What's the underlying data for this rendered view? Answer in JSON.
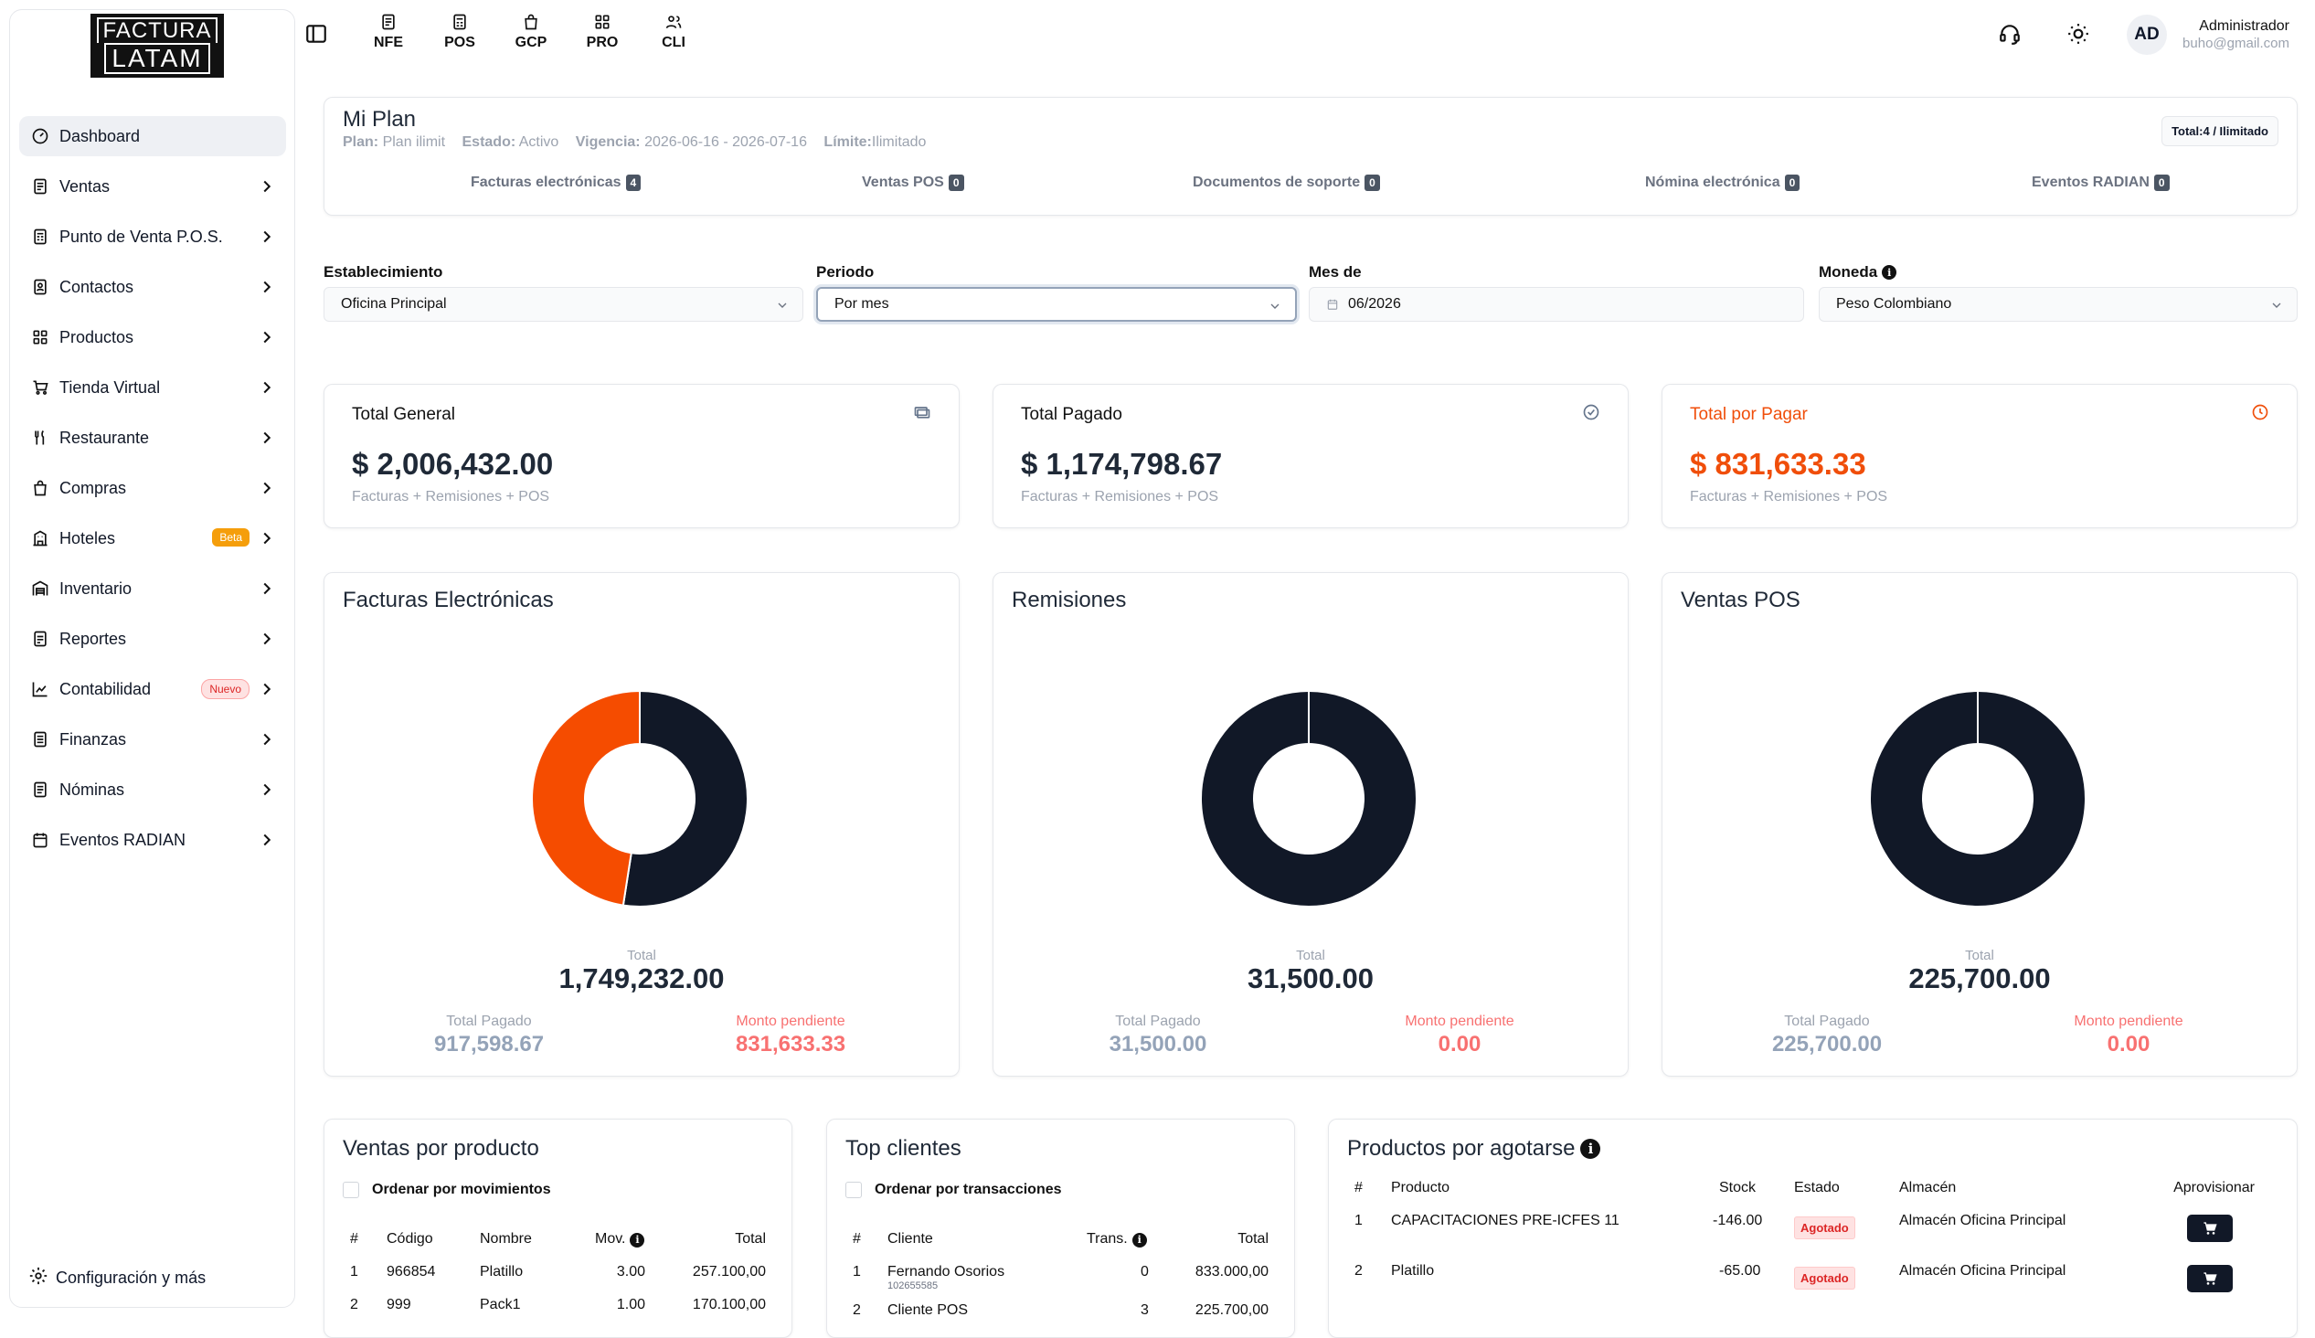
{
  "logo": {
    "line1": "FACTURA",
    "line2": "LATAM"
  },
  "sidebar": {
    "items": [
      {
        "label": "Dashboard",
        "icon": "dashboard-icon"
      },
      {
        "label": "Ventas",
        "icon": "document-icon"
      },
      {
        "label": "Punto de Venta P.O.S.",
        "icon": "pos-icon"
      },
      {
        "label": "Contactos",
        "icon": "contacts-icon"
      },
      {
        "label": "Productos",
        "icon": "grid-icon"
      },
      {
        "label": "Tienda Virtual",
        "icon": "cart-icon"
      },
      {
        "label": "Restaurante",
        "icon": "utensils-icon"
      },
      {
        "label": "Compras",
        "icon": "shopping-bag-icon"
      },
      {
        "label": "Hoteles",
        "icon": "hotel-icon",
        "badge": "Beta"
      },
      {
        "label": "Inventario",
        "icon": "warehouse-icon"
      },
      {
        "label": "Reportes",
        "icon": "report-icon"
      },
      {
        "label": "Contabilidad",
        "icon": "chart-icon",
        "badge": "Nuevo"
      },
      {
        "label": "Finanzas",
        "icon": "finance-icon"
      },
      {
        "label": "Nóminas",
        "icon": "payroll-icon"
      },
      {
        "label": "Eventos RADIAN",
        "icon": "calendar-icon"
      }
    ],
    "footer": "Configuración y más"
  },
  "topnav": [
    {
      "label": "NFE"
    },
    {
      "label": "POS"
    },
    {
      "label": "GCP"
    },
    {
      "label": "PRO"
    },
    {
      "label": "CLI"
    }
  ],
  "user": {
    "initials": "AD",
    "name": "Administrador",
    "email": "buho@gmail.com"
  },
  "plan": {
    "title": "Mi Plan",
    "plan_label": "Plan:",
    "plan_value": "Plan ilimit",
    "estado_label": "Estado:",
    "estado_value": "Activo",
    "vigencia_label": "Vigencia:",
    "vigencia_value": "2026-06-16 - 2026-07-16",
    "limite_label": "Límite:",
    "limite_value": "Ilimitado",
    "total_badge": "Total:4 / Ilimitado",
    "counters": [
      {
        "label": "Facturas electrónicas",
        "value": "4"
      },
      {
        "label": "Ventas POS",
        "value": "0"
      },
      {
        "label": "Documentos de soporte",
        "value": "0"
      },
      {
        "label": "Nómina electrónica",
        "value": "0"
      },
      {
        "label": "Eventos RADIAN",
        "value": "0"
      }
    ]
  },
  "filters": {
    "establecimiento": {
      "label": "Establecimiento",
      "value": "Oficina Principal"
    },
    "periodo": {
      "label": "Periodo",
      "value": "Por mes"
    },
    "mes": {
      "label": "Mes de",
      "value": "06/2026"
    },
    "moneda": {
      "label": "Moneda",
      "value": "Peso Colombiano"
    }
  },
  "summary": [
    {
      "title": "Total General",
      "amount": "$ 2,006,432.00",
      "sub": "Facturas + Remisiones + POS"
    },
    {
      "title": "Total Pagado",
      "amount": "$ 1,174,798.67",
      "sub": "Facturas + Remisiones + POS"
    },
    {
      "title": "Total por Pagar",
      "amount": "$ 831,633.33",
      "sub": "Facturas + Remisiones + POS"
    }
  ],
  "colors": {
    "paid": "#111827",
    "pending": "#f54c00",
    "accent_orange": "#f04e0a"
  },
  "donuts": [
    {
      "title": "Facturas Electrónicas",
      "total_label": "Total",
      "total": "1,749,232.00",
      "paid_label": "Total Pagado",
      "paid": "917,598.67",
      "pending_label": "Monto pendiente",
      "pending": "831,633.33",
      "paid_value": 917598.67,
      "pending_value": 831633.33
    },
    {
      "title": "Remisiones",
      "total_label": "Total",
      "total": "31,500.00",
      "paid_label": "Total Pagado",
      "paid": "31,500.00",
      "pending_label": "Monto pendiente",
      "pending": "0.00",
      "paid_value": 31500.0,
      "pending_value": 0
    },
    {
      "title": "Ventas POS",
      "total_label": "Total",
      "total": "225,700.00",
      "paid_label": "Total Pagado",
      "paid": "225,700.00",
      "pending_label": "Monto pendiente",
      "pending": "0.00",
      "paid_value": 225700.0,
      "pending_value": 0
    }
  ],
  "ventas_producto": {
    "title": "Ventas por producto",
    "checkbox": "Ordenar por movimientos",
    "headers": [
      "#",
      "Código",
      "Nombre",
      "Mov.",
      "Total"
    ],
    "rows": [
      [
        "1",
        "966854",
        "Platillo",
        "3.00",
        "257.100,00"
      ],
      [
        "2",
        "999",
        "Pack1",
        "1.00",
        "170.100,00"
      ]
    ]
  },
  "top_clientes": {
    "title": "Top clientes",
    "checkbox": "Ordenar por transacciones",
    "headers": [
      "#",
      "Cliente",
      "Trans.",
      "Total"
    ],
    "rows": [
      {
        "n": "1",
        "cliente": "Fernando Osorios",
        "doc": "102655585",
        "trans": "0",
        "total": "833.000,00"
      },
      {
        "n": "2",
        "cliente": "Cliente POS",
        "doc": "",
        "trans": "3",
        "total": "225.700,00"
      }
    ]
  },
  "agotarse": {
    "title": "Productos por agotarse",
    "headers": [
      "#",
      "Producto",
      "Stock",
      "Estado",
      "Almacén",
      "Aprovisionar"
    ],
    "rows": [
      {
        "n": "1",
        "producto": "CAPACITACIONES PRE-ICFES 11",
        "stock": "-146.00",
        "estado": "Agotado",
        "almacen": "Almacén Oficina Principal"
      },
      {
        "n": "2",
        "producto": "Platillo",
        "stock": "-65.00",
        "estado": "Agotado",
        "almacen": "Almacén Oficina Principal"
      }
    ]
  }
}
